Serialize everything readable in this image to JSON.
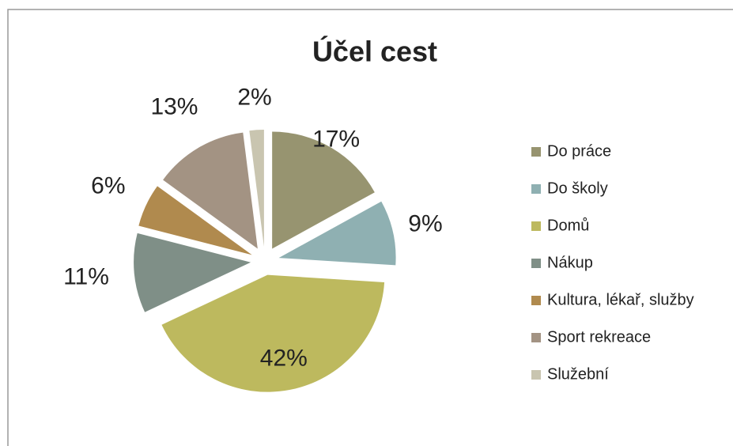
{
  "chart_data": {
    "type": "pie",
    "title": "Účel cest",
    "categories": [
      "Do práce",
      "Do školy",
      "Domů",
      "Nákup",
      "Kultura, lékař, služby",
      "Sport rekreace",
      "Služební"
    ],
    "values": [
      17,
      9,
      42,
      11,
      6,
      13,
      2
    ],
    "value_labels": [
      "17%",
      "9%",
      "42%",
      "11%",
      "6%",
      "13%",
      "2%"
    ],
    "colors": [
      "#979470",
      "#8fb0b2",
      "#bdb95e",
      "#7f8f87",
      "#b08a4e",
      "#a39383",
      "#c9c5b0"
    ],
    "legend": "right"
  }
}
